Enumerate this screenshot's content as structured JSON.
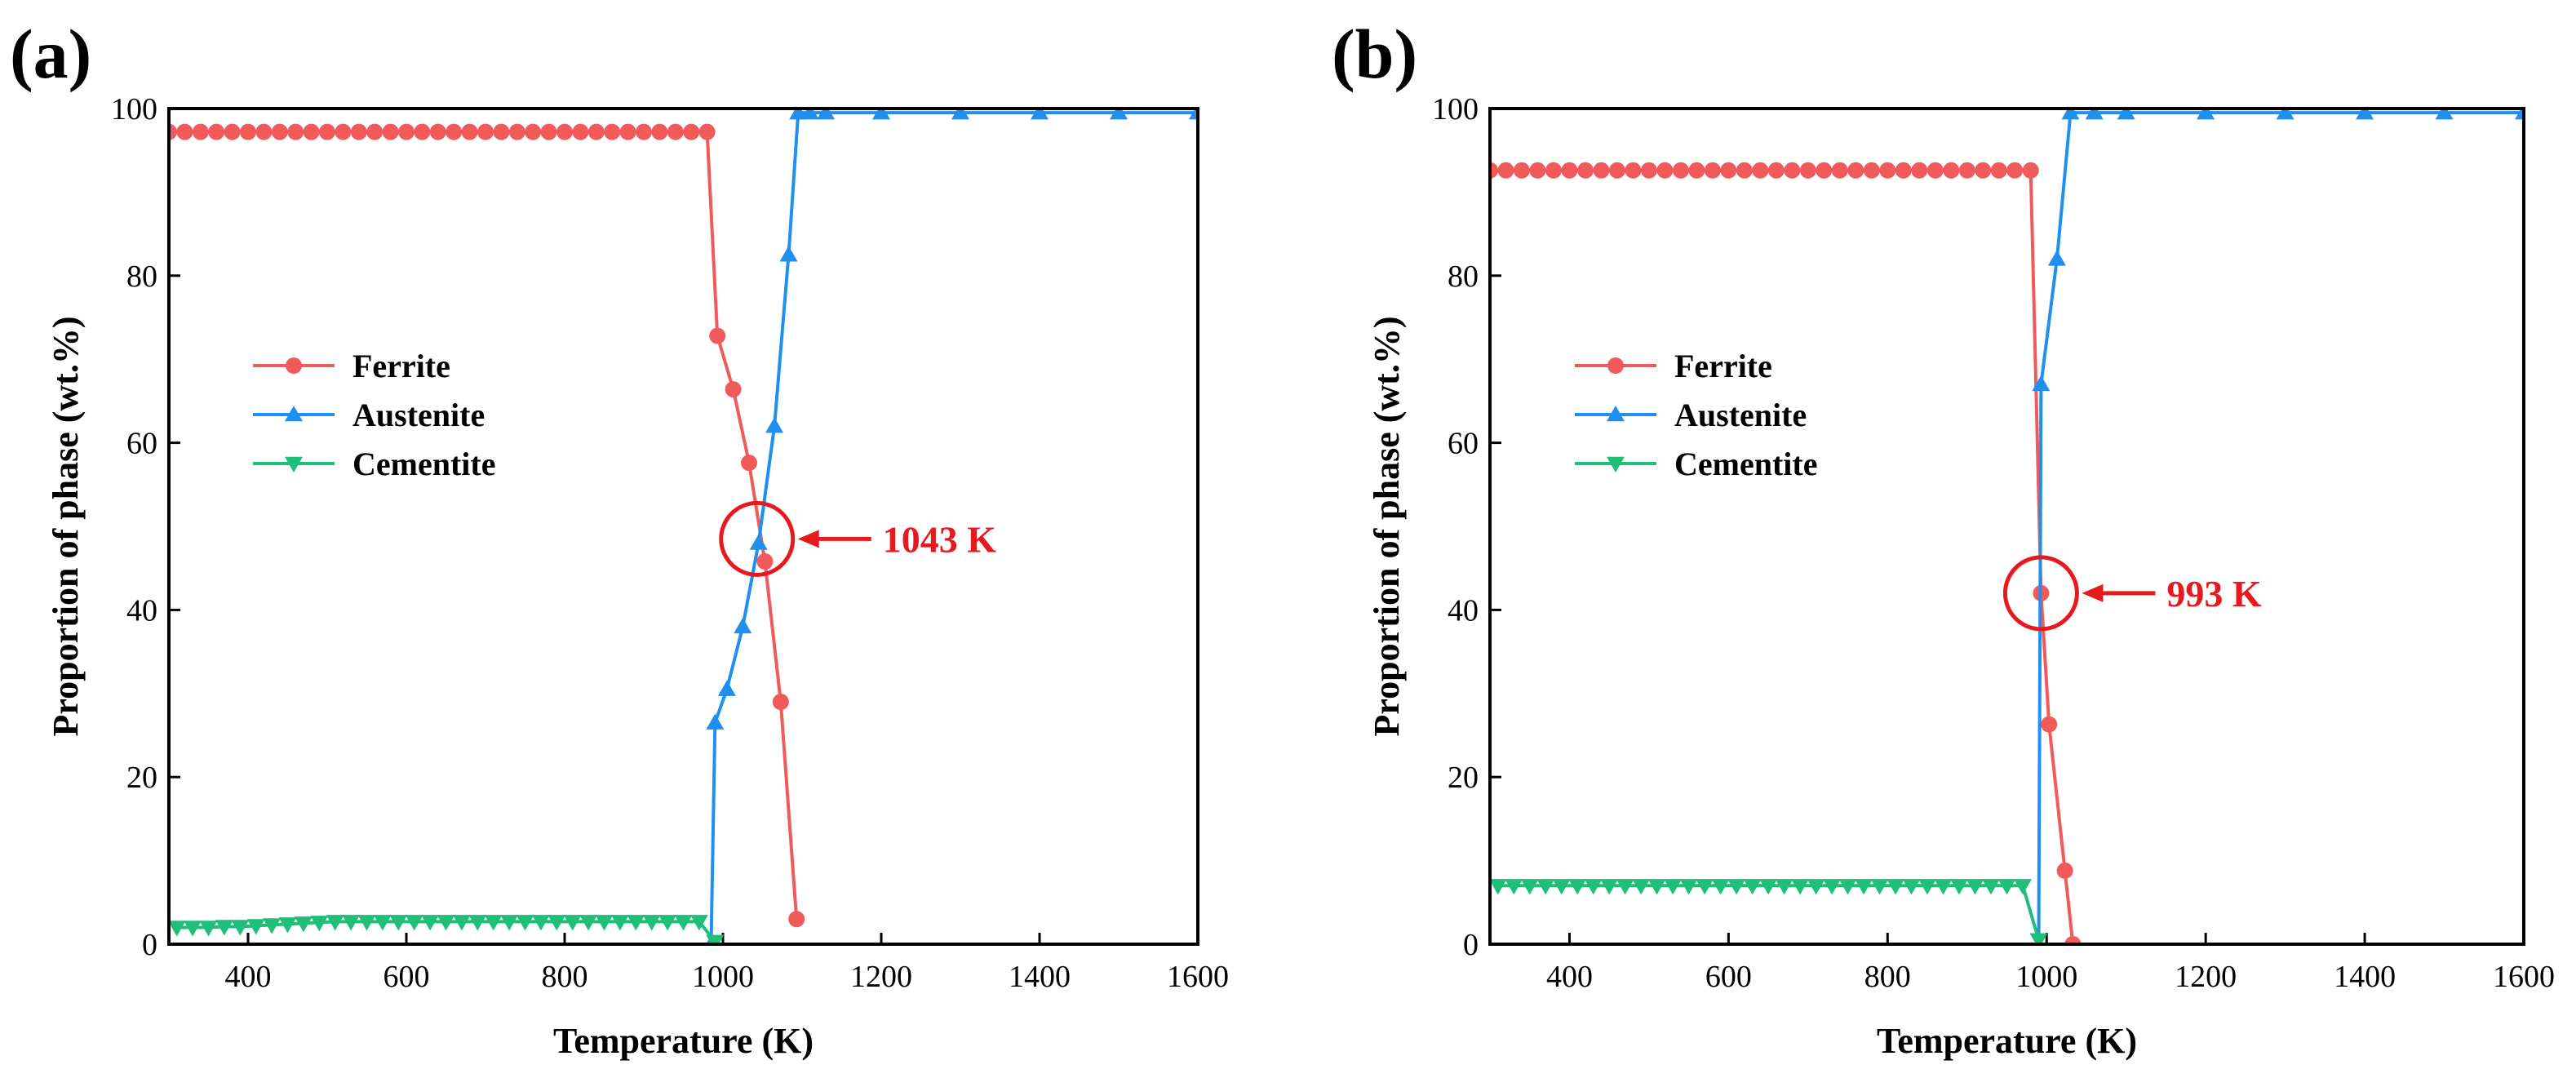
{
  "colors": {
    "ferrite": "#f05a5a",
    "austenite": "#1f8ff0",
    "cementite": "#1fbf7a",
    "annotation": "#e8191e",
    "axis": "#000000"
  },
  "chart_data": [
    {
      "type": "line",
      "panel_label": "(a)",
      "xlabel": "Temperature (K)",
      "ylabel": "Proportion of phase (wt.%)",
      "xlim": [
        300,
        1600
      ],
      "ylim": [
        0,
        100
      ],
      "xticks": [
        400,
        600,
        800,
        1000,
        1200,
        1400,
        1600
      ],
      "yticks": [
        0,
        20,
        40,
        60,
        80,
        100
      ],
      "grid": false,
      "legend_position": "center-left",
      "series": [
        {
          "name": "Ferrite",
          "marker": "circle",
          "color": "#f05a5a",
          "x": [
            300,
            320,
            340,
            360,
            380,
            400,
            420,
            440,
            460,
            480,
            500,
            520,
            540,
            560,
            580,
            600,
            620,
            640,
            660,
            680,
            700,
            720,
            740,
            760,
            780,
            800,
            820,
            840,
            860,
            880,
            900,
            920,
            940,
            960,
            980,
            993,
            1013,
            1033,
            1053,
            1073,
            1093
          ],
          "y": [
            97.2,
            97.2,
            97.2,
            97.2,
            97.2,
            97.2,
            97.2,
            97.2,
            97.2,
            97.2,
            97.2,
            97.2,
            97.2,
            97.2,
            97.2,
            97.2,
            97.2,
            97.2,
            97.2,
            97.2,
            97.2,
            97.2,
            97.2,
            97.2,
            97.2,
            97.2,
            97.2,
            97.2,
            97.2,
            97.2,
            97.2,
            97.2,
            97.2,
            97.2,
            97.2,
            72.8,
            66.4,
            57.6,
            45.8,
            29.0,
            3.0
          ]
        },
        {
          "name": "Austenite",
          "marker": "triangle-up",
          "color": "#1f8ff0",
          "x": [
            985,
            990,
            1005,
            1025,
            1045,
            1065,
            1083,
            1095,
            1110,
            1130,
            1200,
            1300,
            1400,
            1500,
            1600
          ],
          "y": [
            0,
            26.5,
            30.5,
            38.0,
            48.0,
            62.0,
            82.5,
            99.5,
            99.5,
            99.5,
            99.5,
            99.5,
            99.5,
            99.5,
            99.5
          ]
        },
        {
          "name": "Cementite",
          "marker": "triangle-down",
          "color": "#1fbf7a",
          "x": [
            310,
            330,
            350,
            370,
            390,
            410,
            430,
            450,
            470,
            490,
            510,
            530,
            550,
            570,
            590,
            610,
            630,
            650,
            670,
            690,
            710,
            730,
            750,
            770,
            790,
            810,
            830,
            850,
            870,
            890,
            910,
            930,
            950,
            970,
            990
          ],
          "y": [
            2.0,
            2.0,
            2.0,
            2.1,
            2.1,
            2.2,
            2.3,
            2.4,
            2.5,
            2.6,
            2.7,
            2.7,
            2.7,
            2.7,
            2.7,
            2.7,
            2.7,
            2.7,
            2.7,
            2.7,
            2.7,
            2.7,
            2.7,
            2.7,
            2.7,
            2.7,
            2.7,
            2.7,
            2.7,
            2.7,
            2.7,
            2.7,
            2.7,
            2.7,
            0.3
          ]
        }
      ],
      "annotation": {
        "text": "1043 K",
        "x": 1043,
        "y": 48.5
      }
    },
    {
      "type": "line",
      "panel_label": "(b)",
      "xlabel": "Temperature (K)",
      "ylabel": "Proportion of phase (wt.%)",
      "xlim": [
        300,
        1600
      ],
      "ylim": [
        0,
        100
      ],
      "xticks": [
        400,
        600,
        800,
        1000,
        1200,
        1400,
        1600
      ],
      "yticks": [
        0,
        20,
        40,
        60,
        80,
        100
      ],
      "grid": false,
      "legend_position": "center-left",
      "series": [
        {
          "name": "Ferrite",
          "marker": "circle",
          "color": "#f05a5a",
          "x": [
            300,
            320,
            340,
            360,
            380,
            400,
            420,
            440,
            460,
            480,
            500,
            520,
            540,
            560,
            580,
            600,
            620,
            640,
            660,
            680,
            700,
            720,
            740,
            760,
            780,
            800,
            820,
            840,
            860,
            880,
            900,
            920,
            940,
            960,
            980,
            993,
            1003,
            1023,
            1033
          ],
          "y": [
            92.6,
            92.6,
            92.6,
            92.6,
            92.6,
            92.6,
            92.6,
            92.6,
            92.6,
            92.6,
            92.6,
            92.6,
            92.6,
            92.6,
            92.6,
            92.6,
            92.6,
            92.6,
            92.6,
            92.6,
            92.6,
            92.6,
            92.6,
            92.6,
            92.6,
            92.6,
            92.6,
            92.6,
            92.6,
            92.6,
            92.6,
            92.6,
            92.6,
            92.6,
            92.6,
            42.0,
            26.3,
            8.8,
            0
          ]
        },
        {
          "name": "Austenite",
          "marker": "triangle-up",
          "color": "#1f8ff0",
          "x": [
            990,
            993,
            1013,
            1030,
            1060,
            1100,
            1200,
            1300,
            1400,
            1500,
            1600
          ],
          "y": [
            0,
            67.0,
            82.0,
            99.5,
            99.5,
            99.5,
            99.5,
            99.5,
            99.5,
            99.5,
            99.5
          ]
        },
        {
          "name": "Cementite",
          "marker": "triangle-down",
          "color": "#1fbf7a",
          "x": [
            310,
            330,
            350,
            370,
            390,
            410,
            430,
            450,
            470,
            490,
            510,
            530,
            550,
            570,
            590,
            610,
            630,
            650,
            670,
            690,
            710,
            730,
            750,
            770,
            790,
            810,
            830,
            850,
            870,
            890,
            910,
            930,
            950,
            970,
            990
          ],
          "y": [
            7.0,
            7.0,
            7.0,
            7.0,
            7.0,
            7.0,
            7.0,
            7.0,
            7.0,
            7.0,
            7.0,
            7.0,
            7.0,
            7.0,
            7.0,
            7.0,
            7.0,
            7.0,
            7.0,
            7.0,
            7.0,
            7.0,
            7.0,
            7.0,
            7.0,
            7.0,
            7.0,
            7.0,
            7.0,
            7.0,
            7.0,
            7.0,
            7.0,
            7.0,
            0.5
          ]
        }
      ],
      "annotation": {
        "text": "993 K",
        "x": 993,
        "y": 42.0
      }
    }
  ]
}
